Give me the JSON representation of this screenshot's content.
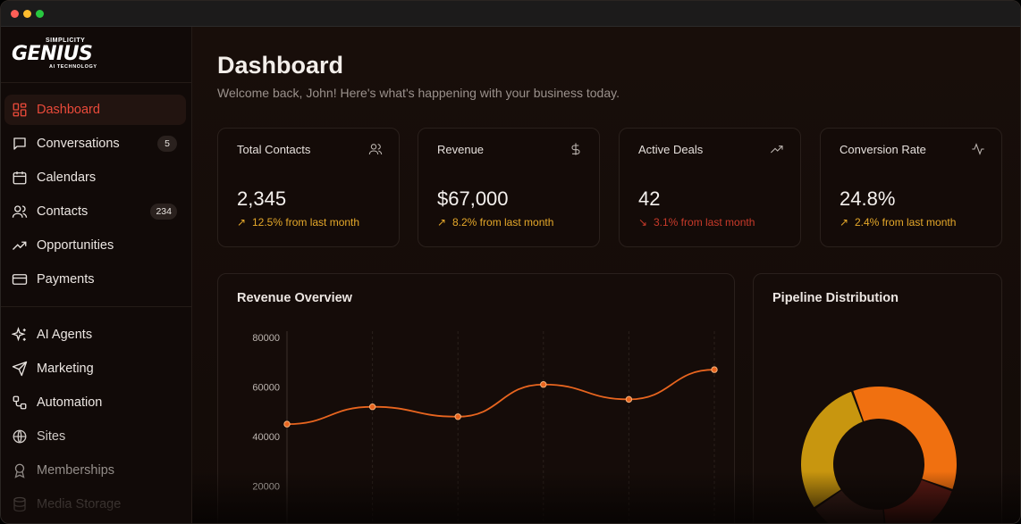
{
  "brand": {
    "top": "SIMPLICITY",
    "name": "GENIUS",
    "tagline": "AI TECHNOLOGY"
  },
  "sidebar": {
    "items": [
      {
        "label": "Dashboard",
        "icon": "dashboard-icon",
        "active": true
      },
      {
        "label": "Conversations",
        "icon": "chat-icon",
        "badge": "5"
      },
      {
        "label": "Calendars",
        "icon": "calendar-icon"
      },
      {
        "label": "Contacts",
        "icon": "users-icon",
        "badge": "234"
      },
      {
        "label": "Opportunities",
        "icon": "trending-up-icon"
      },
      {
        "label": "Payments",
        "icon": "credit-card-icon"
      },
      {
        "label": "AI Agents",
        "icon": "sparkles-icon"
      },
      {
        "label": "Marketing",
        "icon": "send-icon"
      },
      {
        "label": "Automation",
        "icon": "workflow-icon"
      },
      {
        "label": "Sites",
        "icon": "globe-icon"
      },
      {
        "label": "Memberships",
        "icon": "award-icon"
      },
      {
        "label": "Media Storage",
        "icon": "database-icon"
      }
    ]
  },
  "header": {
    "title": "Dashboard",
    "subtitle": "Welcome back, John! Here's what's happening with your business today."
  },
  "stats": [
    {
      "title": "Total Contacts",
      "icon": "users-icon",
      "value": "2,345",
      "trend": "12.5% from last month",
      "direction": "up"
    },
    {
      "title": "Revenue",
      "icon": "dollar-icon",
      "value": "$67,000",
      "trend": "8.2% from last month",
      "direction": "up"
    },
    {
      "title": "Active Deals",
      "icon": "trending-up-icon",
      "value": "42",
      "trend": "3.1% from last month",
      "direction": "down"
    },
    {
      "title": "Conversion Rate",
      "icon": "activity-icon",
      "value": "24.8%",
      "trend": "2.4% from last month",
      "direction": "up"
    }
  ],
  "colors": {
    "accent": "#ea4a3a",
    "trend_up": "#e5a82a",
    "trend_down": "#c93a2a",
    "line": "#e8651f"
  },
  "panels": {
    "revenue_title": "Revenue Overview",
    "pipeline_title": "Pipeline Distribution"
  },
  "chart_data": [
    {
      "type": "line",
      "title": "Revenue Overview",
      "yticks": [
        "80000",
        "60000",
        "40000",
        "20000"
      ],
      "ylim": [
        0,
        80000
      ],
      "x": [
        1,
        2,
        3,
        4,
        5,
        6
      ],
      "series": [
        {
          "values": [
            45000,
            52000,
            48000,
            61000,
            55000,
            67000
          ]
        }
      ],
      "grid": true
    },
    {
      "type": "pie",
      "title": "Pipeline Distribution",
      "donut": true,
      "slices": [
        {
          "value": 36,
          "color": "#f07010"
        },
        {
          "value": 18,
          "color": "#5e1a14"
        },
        {
          "value": 17,
          "color": "#3a1f1a"
        },
        {
          "value": 29,
          "color": "#c8960f"
        }
      ]
    }
  ]
}
